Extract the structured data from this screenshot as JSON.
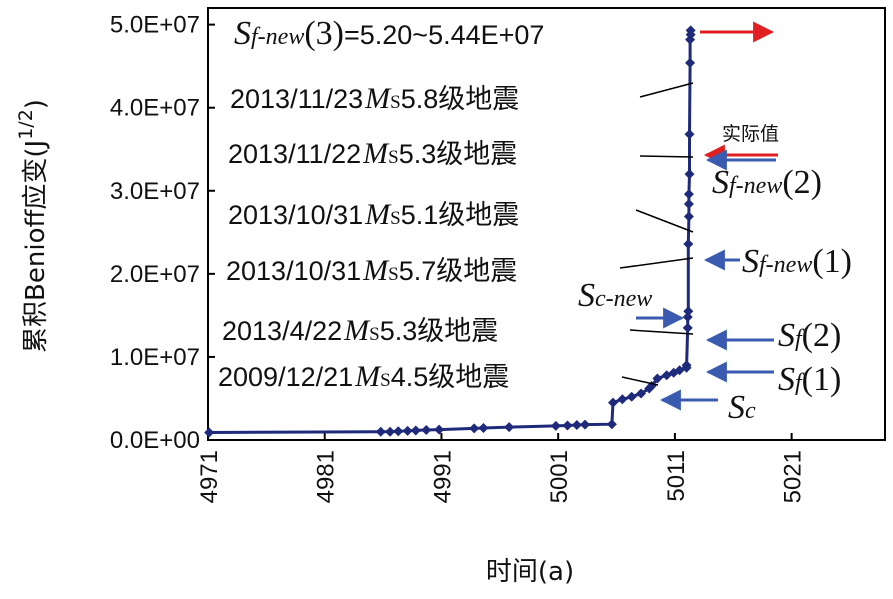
{
  "chart_data": {
    "type": "line",
    "xlabel": "时间(a)",
    "ylabel": "累积Benioff应变(J",
    "ylabel_sup": "1/2",
    "ylabel_close": ")",
    "xlim": [
      4971,
      5029
    ],
    "ylim": [
      0,
      52000000
    ],
    "x_ticks": [
      4971,
      4981,
      4991,
      5001,
      5011,
      5021
    ],
    "x_tick_labels": [
      "4971",
      "4981",
      "4991",
      "5001",
      "5011",
      "5021"
    ],
    "y_ticks": [
      0,
      10000000,
      20000000,
      30000000,
      40000000,
      50000000
    ],
    "y_tick_labels": [
      "0.0E+00",
      "1.0E+07",
      "2.0E+07",
      "3.0E+07",
      "4.0E+07",
      "5.0E+07"
    ],
    "series_color": "#1f2a7a",
    "x": [
      4971.1,
      4985.8,
      4986.6,
      4987.3,
      4988.1,
      4988.8,
      4989.7,
      4990.8,
      4993.8,
      4994.6,
      4996.8,
      5000.8,
      5001.8,
      5002.6,
      5003.3,
      5005.6,
      5005.7,
      5006.5,
      5007.3,
      5008.1,
      5008.8,
      5009.0,
      5009.5,
      5010.3,
      5010.9,
      5011.4,
      5012.0,
      5012.0,
      5012.1,
      5012.1,
      5012.15,
      5012.15,
      5012.2,
      5012.2,
      5012.2,
      5012.25,
      5012.25,
      5012.3,
      5012.3,
      5012.35,
      5012.35
    ],
    "y": [
      900000,
      1000000,
      1000000,
      1050000,
      1100000,
      1150000,
      1200000,
      1250000,
      1400000,
      1450000,
      1550000,
      1700000,
      1750000,
      1800000,
      1850000,
      1900000,
      4500000,
      4900000,
      5200000,
      5600000,
      6200000,
      6500000,
      7400000,
      7800000,
      8100000,
      8400000,
      8700000,
      9000000,
      13500000,
      14800000,
      15500000,
      23600000,
      26900000,
      28400000,
      29600000,
      32000000,
      36800000,
      45400000,
      48200000,
      48800000,
      49300000
    ],
    "annotations": [
      {
        "date": "2013/11/23",
        "mag": "5.8",
        "suffix": "级地震"
      },
      {
        "date": "2013/11/22",
        "mag": "5.3",
        "suffix": "级地震"
      },
      {
        "date": "2013/10/31",
        "mag": "5.1",
        "suffix": "级地震"
      },
      {
        "date": "2013/10/31",
        "mag": "5.7",
        "suffix": "级地震"
      },
      {
        "date": "2013/4/22",
        "mag": "5.3",
        "suffix": "级地震"
      },
      {
        "date": "2009/12/21",
        "mag": "4.5",
        "suffix": "级地震"
      }
    ],
    "mag_symbol": "M",
    "mag_sub": "S",
    "s_labels": [
      {
        "main": "S",
        "sub": "f-new",
        "tail": "(3)",
        "value": "=5.20~5.44E+07"
      },
      {
        "main": "S",
        "sub": "f-new",
        "tail": "(2)"
      },
      {
        "main": "S",
        "sub": "f-new",
        "tail": "(1)"
      },
      {
        "main": "S",
        "sub": "c-new",
        "tail": ""
      },
      {
        "main": "S",
        "sub": "f",
        "tail": "(2)"
      },
      {
        "main": "S",
        "sub": "f",
        "tail": "(1)"
      },
      {
        "main": "S",
        "sub": "c",
        "tail": ""
      }
    ],
    "actual_label": "实际值",
    "arrow_blue": "#3a5bb0",
    "arrow_red": "#e02020"
  }
}
